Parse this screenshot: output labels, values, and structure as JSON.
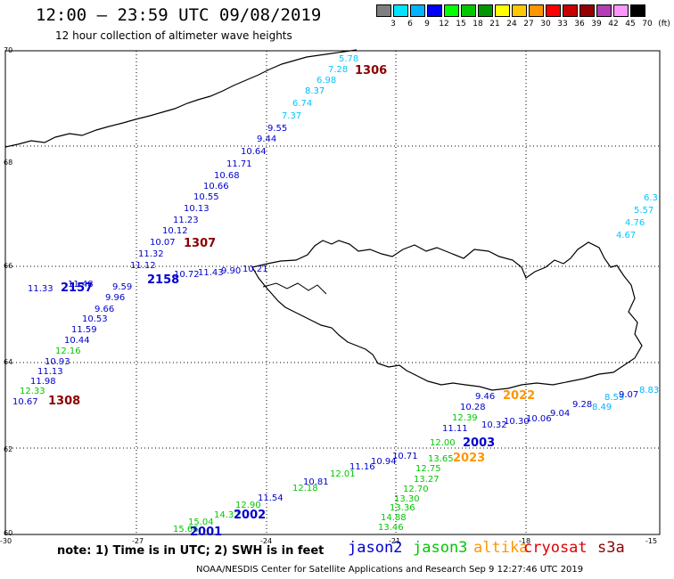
{
  "header": {
    "title": "12:00 – 23:59 UTC 09/08/2019",
    "subtitle": "12 hour collection of altimeter wave heights"
  },
  "color_scale": {
    "labels": [
      "3",
      "6",
      "9",
      "12",
      "15",
      "18",
      "21",
      "24",
      "27",
      "30",
      "33",
      "36",
      "39",
      "42",
      "45",
      "70",
      "(ft)"
    ],
    "colors": [
      "#808080",
      "#00e5ff",
      "#00b4ff",
      "#0000ff",
      "#00ff00",
      "#00c800",
      "#009600",
      "#ffff00",
      "#ffc800",
      "#ff9600",
      "#ff0000",
      "#c80000",
      "#960000",
      "#b43cb4",
      "#ff96ff",
      "#000000"
    ]
  },
  "map": {
    "lat_labels": [
      "70",
      "68",
      "66",
      "64",
      "62",
      "60"
    ],
    "lon_labels": [
      "-30",
      "-27",
      "-24",
      "-21",
      "-18",
      "-15"
    ],
    "track_labels": [
      {
        "t": "1306",
        "c": "#8b0000"
      },
      {
        "t": "1307",
        "c": "#8b0000"
      },
      {
        "t": "1308",
        "c": "#8b0000"
      },
      {
        "t": "2157",
        "c": "#0000cd"
      },
      {
        "t": "2158",
        "c": "#0000cd"
      },
      {
        "t": "2001",
        "c": "#0000cd"
      },
      {
        "t": "2002",
        "c": "#0000cd"
      },
      {
        "t": "2003",
        "c": "#0000cd"
      },
      {
        "t": "2022",
        "c": "#ff9600"
      },
      {
        "t": "2023",
        "c": "#ff9600"
      }
    ],
    "values": [
      {
        "t": "5.78",
        "c": "#00c8ff"
      },
      {
        "t": "7.28",
        "c": "#00c8ff"
      },
      {
        "t": "6.98",
        "c": "#00c8ff"
      },
      {
        "t": "8.37",
        "c": "#00b4ff"
      },
      {
        "t": "6.74",
        "c": "#00c8ff"
      },
      {
        "t": "7.37",
        "c": "#00c8ff"
      },
      {
        "t": "9.55",
        "c": "#0000cd"
      },
      {
        "t": "9.44",
        "c": "#0000cd"
      },
      {
        "t": "10.64",
        "c": "#0000cd"
      },
      {
        "t": "11.71",
        "c": "#0000cd"
      },
      {
        "t": "10.68",
        "c": "#0000cd"
      },
      {
        "t": "10.66",
        "c": "#0000cd"
      },
      {
        "t": "10.55",
        "c": "#0000cd"
      },
      {
        "t": "10.13",
        "c": "#0000cd"
      },
      {
        "t": "11.23",
        "c": "#0000cd"
      },
      {
        "t": "10.12",
        "c": "#0000cd"
      },
      {
        "t": "10.07",
        "c": "#0000cd"
      },
      {
        "t": "11.32",
        "c": "#0000cd"
      },
      {
        "t": "11.12",
        "c": "#0000cd"
      },
      {
        "t": "10.72",
        "c": "#0000cd"
      },
      {
        "t": "11.43",
        "c": "#0000cd"
      },
      {
        "t": "9.90",
        "c": "#0000cd"
      },
      {
        "t": "10.21",
        "c": "#0000cd"
      },
      {
        "t": "11.33",
        "c": "#0000cd"
      },
      {
        "t": "11.48",
        "c": "#0000cd"
      },
      {
        "t": "9.59",
        "c": "#0000cd"
      },
      {
        "t": "9.96",
        "c": "#0000cd"
      },
      {
        "t": "9.66",
        "c": "#0000cd"
      },
      {
        "t": "10.53",
        "c": "#0000cd"
      },
      {
        "t": "11.59",
        "c": "#0000cd"
      },
      {
        "t": "10.44",
        "c": "#0000cd"
      },
      {
        "t": "12.16",
        "c": "#00c800"
      },
      {
        "t": "10.93",
        "c": "#0000cd"
      },
      {
        "t": "11.13",
        "c": "#0000cd"
      },
      {
        "t": "11.98",
        "c": "#0000cd"
      },
      {
        "t": "12.33",
        "c": "#00c800"
      },
      {
        "t": "10.67",
        "c": "#0000cd"
      },
      {
        "t": "6.3",
        "c": "#00c8ff"
      },
      {
        "t": "5.57",
        "c": "#00c8ff"
      },
      {
        "t": "4.76",
        "c": "#00c8ff"
      },
      {
        "t": "4.67",
        "c": "#00c8ff"
      },
      {
        "t": "9.46",
        "c": "#0000cd"
      },
      {
        "t": "10.28",
        "c": "#0000cd"
      },
      {
        "t": "12.39",
        "c": "#00c800"
      },
      {
        "t": "11.11",
        "c": "#0000cd"
      },
      {
        "t": "10.32",
        "c": "#0000cd"
      },
      {
        "t": "10.30",
        "c": "#0000cd"
      },
      {
        "t": "10.06",
        "c": "#0000cd"
      },
      {
        "t": "9.04",
        "c": "#0000cd"
      },
      {
        "t": "9.28",
        "c": "#0000cd"
      },
      {
        "t": "8.49",
        "c": "#00b4ff"
      },
      {
        "t": "8.59",
        "c": "#00b4ff"
      },
      {
        "t": "9.07",
        "c": "#0000cd"
      },
      {
        "t": "8.83",
        "c": "#00b4ff"
      },
      {
        "t": "12.00",
        "c": "#00c800"
      },
      {
        "t": "13.65",
        "c": "#00c800"
      },
      {
        "t": "12.75",
        "c": "#00c800"
      },
      {
        "t": "13.27",
        "c": "#00c800"
      },
      {
        "t": "12.70",
        "c": "#00c800"
      },
      {
        "t": "13.30",
        "c": "#00c800"
      },
      {
        "t": "13.36",
        "c": "#00c800"
      },
      {
        "t": "14.88",
        "c": "#00c800"
      },
      {
        "t": "13.46",
        "c": "#00c800"
      },
      {
        "t": "10.71",
        "c": "#0000cd"
      },
      {
        "t": "10.94",
        "c": "#0000cd"
      },
      {
        "t": "11.16",
        "c": "#0000cd"
      },
      {
        "t": "12.01",
        "c": "#00c800"
      },
      {
        "t": "10.81",
        "c": "#0000cd"
      },
      {
        "t": "12.18",
        "c": "#00c800"
      },
      {
        "t": "11.54",
        "c": "#0000cd"
      },
      {
        "t": "12.90",
        "c": "#00c800"
      },
      {
        "t": "14.32",
        "c": "#00c800"
      },
      {
        "t": "15.04",
        "c": "#00c800"
      },
      {
        "t": "15.66",
        "c": "#00c800"
      }
    ]
  },
  "footer": {
    "note": "note:  1) Time is in UTC;  2) SWH is in feet",
    "legend": [
      {
        "t": "jason2",
        "c": "#0000cd"
      },
      {
        "t": "jason3",
        "c": "#00c800"
      },
      {
        "t": "altika",
        "c": "#ff9600"
      },
      {
        "t": "cryosat",
        "c": "#e00000"
      },
      {
        "t": "s3a",
        "c": "#8b0000"
      }
    ],
    "credit": "NOAA/NESDIS Center for Satellite Applications and Research    Sep  9 12:27:46 UTC 2019"
  }
}
